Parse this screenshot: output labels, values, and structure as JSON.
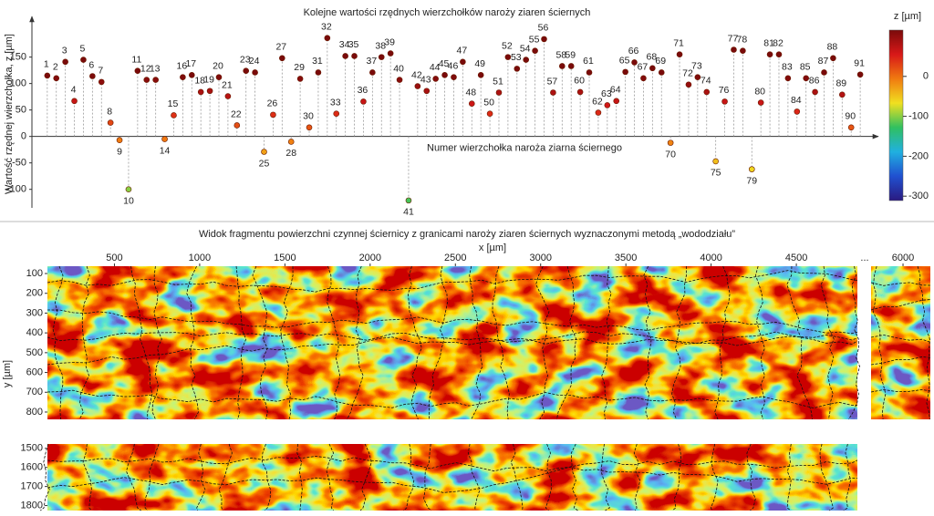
{
  "chart_data": [
    {
      "type": "stem",
      "title": "Kolejne wartości rzędnych wierzchołków naroży ziaren ściernych",
      "xlabel": "Numer wierzchołka naroża ziarna ściernego",
      "ylabel": "Wartość rzędnej wierzchołka, z [µm]",
      "x": [
        1,
        2,
        3,
        4,
        5,
        6,
        7,
        8,
        9,
        10,
        11,
        12,
        13,
        14,
        15,
        16,
        17,
        18,
        19,
        20,
        21,
        22,
        23,
        24,
        25,
        26,
        27,
        28,
        29,
        30,
        31,
        32,
        33,
        34,
        35,
        36,
        37,
        38,
        39,
        40,
        41,
        42,
        43,
        44,
        45,
        46,
        47,
        48,
        49,
        50,
        51,
        52,
        53,
        54,
        55,
        56,
        57,
        58,
        59,
        60,
        61,
        62,
        63,
        64,
        65,
        66,
        67,
        68,
        69,
        70,
        71,
        72,
        73,
        74,
        75,
        76,
        77,
        78,
        79,
        80,
        81,
        82,
        83,
        84,
        85,
        86,
        87,
        88,
        89,
        90,
        91
      ],
      "values": [
        115,
        110,
        141,
        67,
        145,
        114,
        103,
        26,
        -7,
        -100,
        124,
        107,
        107,
        -5,
        40,
        112,
        116,
        84,
        86,
        112,
        76,
        21,
        124,
        121,
        -29,
        41,
        148,
        -10,
        109,
        17,
        121,
        186,
        43,
        152,
        152,
        66,
        121,
        150,
        157,
        107,
        -121,
        95,
        86,
        109,
        116,
        112,
        141,
        62,
        116,
        43,
        83,
        150,
        128,
        145,
        162,
        184,
        83,
        133,
        133,
        84,
        121,
        45,
        59,
        67,
        122,
        140,
        110,
        129,
        121,
        -12,
        155,
        98,
        112,
        84,
        -47,
        66,
        164,
        162,
        -62,
        64,
        155,
        155,
        110,
        47,
        110,
        84,
        121,
        148,
        79,
        17,
        117
      ],
      "xlim": [
        -0.7,
        92.2
      ],
      "ylim": [
        -135,
        220
      ],
      "yticks": [
        -100,
        -50,
        0,
        50,
        100,
        150
      ],
      "colormap": [
        "#7a0a0a",
        "#d81818",
        "#f07a10",
        "#f0e020",
        "#30c060",
        "#20b0e0",
        "#2050d0",
        "#2a1a80"
      ],
      "colorbar": {
        "label": "z [µm]",
        "lim": [
          -311,
          116
        ],
        "ticks": [
          0,
          -100,
          -200,
          -300
        ]
      }
    },
    {
      "type": "heatmap",
      "title": "Widok fragmentu powierzchni czynnej ściernicy z granicami naroży ziaren ściernych wyznaczonymi metodą „wododziału”",
      "xlabel": "x [µm]",
      "ylabel": "y [µm]",
      "gap_mark": "...",
      "panels": [
        {
          "xlim": [
            107,
            4858
          ],
          "ylim": [
            837,
            63
          ],
          "xticks": [
            500,
            1000,
            1500,
            2000,
            2500,
            3000,
            3500,
            4000,
            4500
          ],
          "yticks": [
            100,
            200,
            300,
            400,
            500,
            600,
            700,
            800
          ]
        },
        {
          "xlim": [
            5813,
            6160
          ],
          "ylim": [
            837,
            63
          ],
          "xticks": [
            6000
          ],
          "yticks": []
        },
        {
          "xlim": [
            107,
            4858
          ],
          "ylim": [
            1826,
            1477
          ],
          "xticks": [],
          "yticks": [
            1500,
            1600,
            1700,
            1800
          ]
        }
      ]
    }
  ]
}
